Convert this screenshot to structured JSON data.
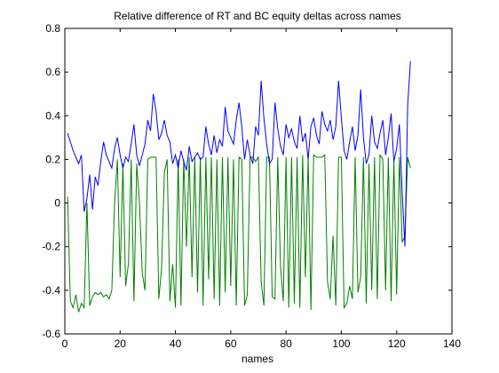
{
  "chart_data": {
    "type": "line",
    "title": "Relative difference of RT and BC equity deltas across names",
    "xlabel": "names",
    "ylabel": "",
    "xlim": [
      0,
      140
    ],
    "ylim": [
      -0.6,
      0.8
    ],
    "xticks": [
      0,
      20,
      40,
      60,
      80,
      100,
      120,
      140
    ],
    "yticks": [
      -0.6,
      -0.4,
      -0.2,
      0,
      0.2,
      0.4,
      0.6,
      0.8
    ],
    "ytick_labels": [
      "-0.6",
      "-0.4",
      "-0.2",
      "0",
      "0.2",
      "0.4",
      "0.6",
      "0.8"
    ],
    "grid": false,
    "legend": "none",
    "series": [
      {
        "color": "#0000ff",
        "x": [
          1,
          2,
          3,
          4,
          5,
          6,
          7,
          8,
          9,
          10,
          11,
          12,
          13,
          14,
          15,
          16,
          17,
          18,
          19,
          20,
          21,
          22,
          23,
          24,
          25,
          26,
          27,
          28,
          29,
          30,
          31,
          32,
          33,
          34,
          35,
          36,
          37,
          38,
          39,
          40,
          41,
          42,
          43,
          44,
          45,
          46,
          47,
          48,
          49,
          50,
          51,
          52,
          53,
          54,
          55,
          56,
          57,
          58,
          59,
          60,
          61,
          62,
          63,
          64,
          65,
          66,
          67,
          68,
          69,
          70,
          71,
          72,
          73,
          74,
          75,
          76,
          77,
          78,
          79,
          80,
          81,
          82,
          83,
          84,
          85,
          86,
          87,
          88,
          89,
          90,
          91,
          92,
          93,
          94,
          95,
          96,
          97,
          98,
          99,
          100,
          101,
          102,
          103,
          104,
          105,
          106,
          107,
          108,
          109,
          110,
          111,
          112,
          113,
          114,
          115,
          116,
          117,
          118,
          119,
          120,
          121,
          122,
          123,
          124,
          125
        ],
        "y": [
          0.32,
          0.28,
          0.24,
          0.21,
          0.18,
          0.22,
          -0.04,
          0.02,
          0.13,
          -0.03,
          0.12,
          0.08,
          0.19,
          0.28,
          0.22,
          0.19,
          0.16,
          0.25,
          0.3,
          0.22,
          0.16,
          0.21,
          0.19,
          0.27,
          0.36,
          0.22,
          0.17,
          0.22,
          0.27,
          0.38,
          0.33,
          0.5,
          0.42,
          0.29,
          0.32,
          0.38,
          0.31,
          0.28,
          0.18,
          0.22,
          0.16,
          0.24,
          0.19,
          0.15,
          0.26,
          0.19,
          0.21,
          0.23,
          0.2,
          0.21,
          0.35,
          0.27,
          0.22,
          0.31,
          0.23,
          0.29,
          0.26,
          0.44,
          0.33,
          0.3,
          0.27,
          0.38,
          0.46,
          0.35,
          0.2,
          0.29,
          0.22,
          0.18,
          0.35,
          0.31,
          0.56,
          0.39,
          0.27,
          0.18,
          0.2,
          0.46,
          0.34,
          0.26,
          0.22,
          0.36,
          0.3,
          0.34,
          0.28,
          0.25,
          0.4,
          0.28,
          0.32,
          0.2,
          0.35,
          0.39,
          0.31,
          0.27,
          0.42,
          0.36,
          0.33,
          0.38,
          0.29,
          0.35,
          0.56,
          0.39,
          0.24,
          0.2,
          0.28,
          0.35,
          0.24,
          0.31,
          0.52,
          0.3,
          0.18,
          0.22,
          0.4,
          0.28,
          0.25,
          0.32,
          0.38,
          0.22,
          0.3,
          0.41,
          0.19,
          0.25,
          0.36,
          0.05,
          -0.2,
          0.45,
          0.65
        ]
      },
      {
        "color": "#008000",
        "x": [
          1,
          2,
          3,
          4,
          5,
          6,
          7,
          8,
          9,
          10,
          11,
          12,
          13,
          14,
          15,
          16,
          17,
          18,
          19,
          20,
          21,
          22,
          23,
          24,
          25,
          26,
          27,
          28,
          29,
          30,
          31,
          32,
          33,
          34,
          35,
          36,
          37,
          38,
          39,
          40,
          41,
          42,
          43,
          44,
          45,
          46,
          47,
          48,
          49,
          50,
          51,
          52,
          53,
          54,
          55,
          56,
          57,
          58,
          59,
          60,
          61,
          62,
          63,
          64,
          65,
          66,
          67,
          68,
          69,
          70,
          71,
          72,
          73,
          74,
          75,
          76,
          77,
          78,
          79,
          80,
          81,
          82,
          83,
          84,
          85,
          86,
          87,
          88,
          89,
          90,
          91,
          92,
          93,
          94,
          95,
          96,
          97,
          98,
          99,
          100,
          101,
          102,
          103,
          104,
          105,
          106,
          107,
          108,
          109,
          110,
          111,
          112,
          113,
          114,
          115,
          116,
          117,
          118,
          119,
          120,
          121,
          122,
          123,
          124,
          125
        ],
        "y": [
          0.03,
          -0.45,
          -0.48,
          -0.42,
          -0.5,
          -0.46,
          -0.48,
          0.0,
          -0.47,
          -0.43,
          -0.41,
          -0.42,
          -0.41,
          -0.43,
          -0.42,
          -0.44,
          -0.4,
          0.0,
          0.2,
          -0.34,
          0.18,
          -0.38,
          -0.28,
          0.2,
          -0.45,
          0.18,
          0.0,
          -0.32,
          -0.4,
          0.2,
          0.21,
          0.21,
          0.21,
          -0.44,
          -0.3,
          0.14,
          0.2,
          -0.45,
          -0.28,
          -0.48,
          0.2,
          -0.47,
          0.2,
          -0.2,
          0.21,
          -0.34,
          0.21,
          -0.41,
          0.21,
          -0.47,
          0.21,
          -0.35,
          0.21,
          -0.44,
          0.2,
          -0.47,
          0.21,
          -0.41,
          0.21,
          -0.38,
          0.2,
          -0.47,
          0.21,
          0.2,
          -0.47,
          -0.42,
          0.21,
          0.21,
          0.19,
          0.21,
          -0.36,
          -0.47,
          0.21,
          0.21,
          -0.43,
          -0.44,
          0.21,
          -0.29,
          -0.45,
          0.21,
          -0.48,
          0.21,
          -0.46,
          0.21,
          -0.48,
          0.22,
          -0.34,
          0.21,
          -0.49,
          0.22,
          0.21,
          0.21,
          0.21,
          0.22,
          -0.36,
          -0.44,
          -0.15,
          -0.47,
          0.21,
          0.21,
          -0.48,
          -0.46,
          -0.38,
          -0.44,
          0.21,
          -0.41,
          -0.34,
          0.21,
          -0.46,
          0.18,
          -0.4,
          0.21,
          -0.44,
          0.22,
          0.2,
          -0.4,
          0.21,
          -0.45,
          0.2,
          -0.42,
          0.21,
          -0.18,
          -0.15,
          0.21,
          0.16
        ]
      }
    ]
  }
}
